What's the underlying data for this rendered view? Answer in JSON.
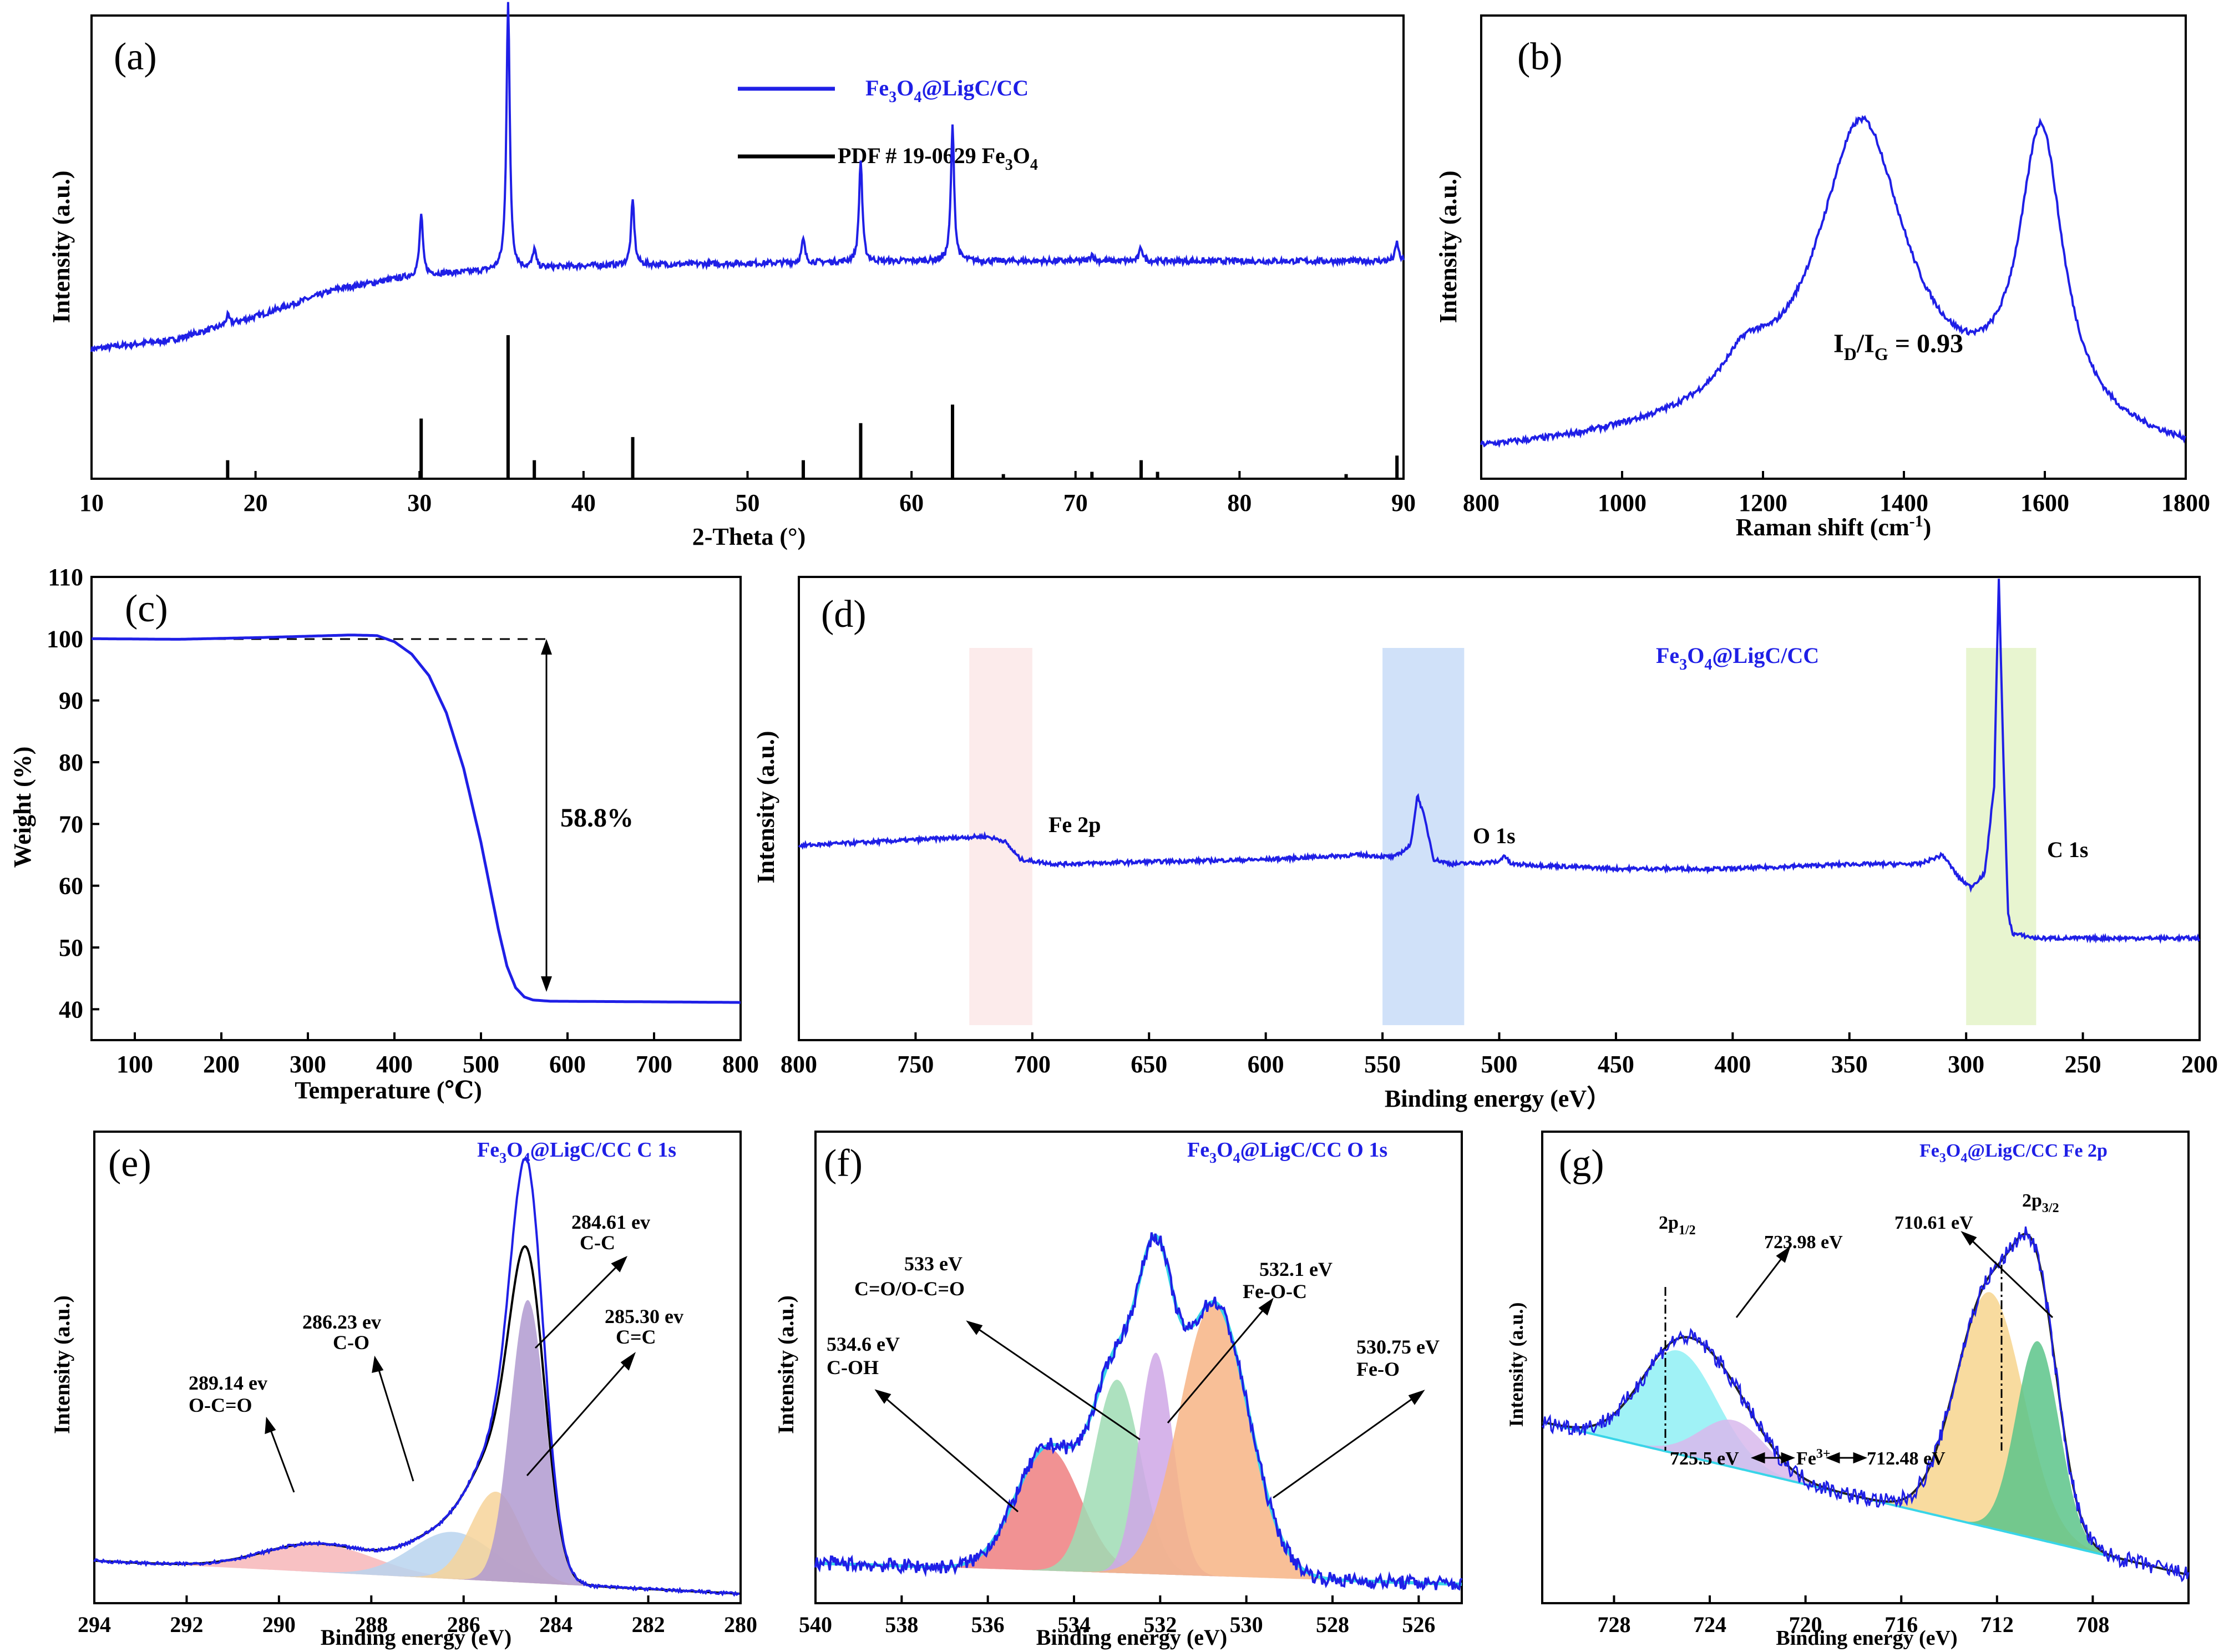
{
  "figure": {
    "description_panels": [
      "a",
      "b",
      "c",
      "d",
      "e",
      "f",
      "g"
    ]
  },
  "colors": {
    "blue": "#1f1fe6",
    "black": "#000000",
    "red": "#ef7f80",
    "green": "#8fd8a8",
    "purple": "#c9a3e0",
    "orange": "#f7b485",
    "cyan": "#8ff0f5",
    "yellow": "#f7de8e",
    "teal": "#40c08a",
    "pink": "#f7b6b8",
    "lightblue": "#b8d3ee",
    "shade_pink": "#fbe8e8",
    "shade_blue": "#c8dcf8",
    "shade_green": "#e4f3c8"
  },
  "chart_data": [
    {
      "id": "a",
      "type": "line",
      "panel_label": "(a)",
      "xlabel": "2-Theta (°)",
      "ylabel": "Intensity (a.u.)",
      "xlim": [
        10,
        90
      ],
      "ylim": [
        0,
        1
      ],
      "xticks": [
        "10",
        "20",
        "30",
        "40",
        "50",
        "60",
        "70",
        "80",
        "90"
      ],
      "legend": [
        {
          "name_main": "Fe",
          "name_sub": "3",
          "name_rest": "O",
          "name_sub2": "4",
          "name_tail": "@LigC/CC",
          "color": "#1f1fe6"
        },
        {
          "name_main": "PDF # 19-0629 Fe",
          "name_sub": "3",
          "name_rest": "O",
          "name_sub2": "4",
          "name_tail": "",
          "color": "#000000"
        }
      ],
      "series": [
        {
          "name": "Fe3O4@LigC/CC",
          "baseline": [
            [
              10,
              0.28
            ],
            [
              15,
              0.3
            ],
            [
              20,
              0.35
            ],
            [
              25,
              0.41
            ],
            [
              30,
              0.44
            ],
            [
              35,
              0.45
            ],
            [
              40,
              0.46
            ],
            [
              50,
              0.465
            ],
            [
              60,
              0.47
            ],
            [
              70,
              0.47
            ],
            [
              80,
              0.47
            ],
            [
              90,
              0.47
            ]
          ],
          "peaks": [
            [
              18.3,
              0.02
            ],
            [
              30.1,
              0.13
            ],
            [
              35.4,
              0.58
            ],
            [
              37.0,
              0.04
            ],
            [
              43.0,
              0.14
            ],
            [
              53.4,
              0.05
            ],
            [
              56.9,
              0.22
            ],
            [
              62.5,
              0.29
            ],
            [
              71.0,
              0.015
            ],
            [
              74.0,
              0.03
            ],
            [
              89.6,
              0.04
            ]
          ]
        },
        {
          "name": "PDF # 19-0629 Fe3O4",
          "sticks": [
            [
              18.3,
              0.04
            ],
            [
              30.1,
              0.13
            ],
            [
              35.4,
              0.31
            ],
            [
              37.0,
              0.04
            ],
            [
              43.0,
              0.09
            ],
            [
              53.4,
              0.04
            ],
            [
              56.9,
              0.12
            ],
            [
              62.5,
              0.16
            ],
            [
              65.6,
              0.01
            ],
            [
              71.0,
              0.015
            ],
            [
              74.0,
              0.04
            ],
            [
              75.0,
              0.015
            ],
            [
              86.5,
              0.01
            ],
            [
              89.6,
              0.05
            ]
          ]
        }
      ]
    },
    {
      "id": "b",
      "type": "line",
      "panel_label": "(b)",
      "xlabel_main": "Raman shift (cm",
      "xlabel_sup": "-1",
      "xlabel_tail": ")",
      "ylabel": "Intensity (a.u.)",
      "xlim": [
        800,
        1800
      ],
      "ylim": [
        0,
        1
      ],
      "xticks": [
        "800",
        "1000",
        "1200",
        "1400",
        "1600",
        "1800"
      ],
      "annotation": {
        "main": "I",
        "sub1": "D",
        "mid": "/I",
        "sub2": "G",
        "tail": " = 0.93"
      },
      "baseline": [
        [
          800,
          0.05
        ],
        [
          1800,
          0.03
        ]
      ],
      "peaks": [
        {
          "center": 1340,
          "height": 0.62,
          "width": 150
        },
        {
          "center": 1595,
          "height": 0.62,
          "width": 75
        },
        {
          "center": 1175,
          "height": 0.08,
          "width": 80
        }
      ]
    },
    {
      "id": "c",
      "type": "line",
      "panel_label": "(c)",
      "xlabel": "Temperature (℃)",
      "ylabel": "Weight (%)",
      "xlim": [
        50,
        800
      ],
      "ylim": [
        35,
        110
      ],
      "xticks": [
        "100",
        "200",
        "300",
        "400",
        "500",
        "600",
        "700",
        "800"
      ],
      "yticks": [
        "40",
        "50",
        "60",
        "70",
        "80",
        "90",
        "100",
        "110"
      ],
      "annotation": "58.8%",
      "points": [
        [
          50,
          100
        ],
        [
          150,
          99.9
        ],
        [
          250,
          100.2
        ],
        [
          350,
          100.6
        ],
        [
          380,
          100.5
        ],
        [
          400,
          99.5
        ],
        [
          420,
          97.5
        ],
        [
          440,
          94
        ],
        [
          460,
          88
        ],
        [
          480,
          79
        ],
        [
          500,
          67
        ],
        [
          510,
          60
        ],
        [
          520,
          53
        ],
        [
          530,
          47
        ],
        [
          540,
          43.5
        ],
        [
          550,
          42
        ],
        [
          560,
          41.5
        ],
        [
          580,
          41.3
        ],
        [
          700,
          41.2
        ],
        [
          800,
          41.1
        ]
      ]
    },
    {
      "id": "d",
      "type": "line",
      "panel_label": "(d)",
      "xlabel": "Binding energy (eV）",
      "ylabel": "Intensity (a.u.)",
      "xlim": [
        800,
        200
      ],
      "ylim": [
        0,
        1
      ],
      "xticks": [
        "800",
        "750",
        "700",
        "650",
        "600",
        "550",
        "500",
        "450",
        "400",
        "350",
        "300",
        "250",
        "200"
      ],
      "title": {
        "main": "Fe",
        "sub": "3",
        "mid": "O",
        "sub2": "4",
        "tail": "@LigC/CC"
      },
      "regions": [
        {
          "from": 727,
          "to": 700,
          "label": "Fe 2p"
        },
        {
          "from": 550,
          "to": 515,
          "label": "O 1s"
        },
        {
          "from": 300,
          "to": 270,
          "label": "C 1s"
        }
      ],
      "points": [
        [
          800,
          0.42
        ],
        [
          760,
          0.43
        ],
        [
          720,
          0.44
        ],
        [
          712,
          0.43
        ],
        [
          705,
          0.39
        ],
        [
          690,
          0.38
        ],
        [
          650,
          0.385
        ],
        [
          600,
          0.39
        ],
        [
          560,
          0.4
        ],
        [
          545,
          0.395
        ],
        [
          538,
          0.42
        ],
        [
          535,
          0.53
        ],
        [
          532,
          0.48
        ],
        [
          528,
          0.39
        ],
        [
          520,
          0.38
        ],
        [
          500,
          0.385
        ],
        [
          498,
          0.4
        ],
        [
          495,
          0.38
        ],
        [
          450,
          0.37
        ],
        [
          400,
          0.37
        ],
        [
          350,
          0.38
        ],
        [
          320,
          0.38
        ],
        [
          310,
          0.4
        ],
        [
          303,
          0.35
        ],
        [
          298,
          0.33
        ],
        [
          292,
          0.36
        ],
        [
          288,
          0.55
        ],
        [
          286,
          1.0
        ],
        [
          284,
          0.6
        ],
        [
          282,
          0.27
        ],
        [
          280,
          0.23
        ],
        [
          270,
          0.22
        ],
        [
          250,
          0.22
        ],
        [
          200,
          0.22
        ]
      ]
    },
    {
      "id": "e",
      "type": "area",
      "panel_label": "(e)",
      "xlabel": "Binding energy (eV)",
      "ylabel": "Intensity (a.u.)",
      "xlim": [
        294,
        280
      ],
      "ylim": [
        0,
        1
      ],
      "xticks": [
        "294",
        "292",
        "290",
        "288",
        "286",
        "284",
        "282",
        "280"
      ],
      "title": {
        "main": "Fe",
        "sub": "3",
        "mid": "O",
        "sub2": "4",
        "tail": "@LigC/CC  C 1s"
      },
      "components": [
        {
          "center": 289.14,
          "height": 0.06,
          "width": 1.2,
          "color": "#f7b6b8",
          "label1": "289.14 ev",
          "label2": "O-C=O"
        },
        {
          "center": 286.23,
          "height": 0.1,
          "width": 0.9,
          "color": "#b8d3ee",
          "label1": "286.23 ev",
          "label2": "C-O"
        },
        {
          "center": 285.3,
          "height": 0.19,
          "width": 0.55,
          "color": "#f7d49a",
          "label1": "285.30 ev",
          "label2": "C=C"
        },
        {
          "center": 284.61,
          "height": 0.6,
          "width": 0.38,
          "color": "#b09ad0",
          "label1": "284.61 ev",
          "label2": "C-C"
        }
      ]
    },
    {
      "id": "f",
      "type": "area",
      "panel_label": "(f)",
      "xlabel": "Binding energy (eV)",
      "ylabel": "Intensity (a.u.)",
      "xlim": [
        540,
        525
      ],
      "ylim": [
        0,
        1
      ],
      "xticks": [
        "540",
        "538",
        "536",
        "534",
        "532",
        "530",
        "528",
        "526"
      ],
      "title": {
        "main": "Fe",
        "sub": "3",
        "mid": "O",
        "sub2": "4",
        "tail": "@LigC/CC  O 1s"
      },
      "components": [
        {
          "center": 534.6,
          "height": 0.26,
          "width": 0.75,
          "color": "#ef7f80",
          "label1": "534.6 eV",
          "label2": "C-OH"
        },
        {
          "center": 533.0,
          "height": 0.41,
          "width": 0.55,
          "color": "#9fdcb4",
          "label1": "533 eV",
          "label2": "C=O/O-C=O"
        },
        {
          "center": 532.1,
          "height": 0.47,
          "width": 0.4,
          "color": "#cfa7e6",
          "label1": "532.1 eV",
          "label2": "Fe-O-C"
        },
        {
          "center": 530.75,
          "height": 0.58,
          "width": 0.8,
          "color": "#f7b485",
          "label1": "530.75 eV",
          "label2": "Fe-O"
        }
      ]
    },
    {
      "id": "g",
      "type": "area",
      "panel_label": "(g)",
      "xlabel": "Binding energy (eV)",
      "ylabel": "Intensity (a.u.)",
      "xlim": [
        731,
        704
      ],
      "ylim": [
        0,
        1
      ],
      "xticks": [
        "728",
        "724",
        "720",
        "716",
        "712",
        "708"
      ],
      "title": {
        "main": "Fe",
        "sub": "3",
        "mid": "O",
        "sub2": "4",
        "tail": "@LigC/CC  Fe 2p"
      },
      "orbital_labels": [
        {
          "main": "2p",
          "sub": "1/2"
        },
        {
          "main": "2p",
          "sub": "3/2"
        }
      ],
      "peak_labels": [
        "723.98 eV",
        "710.61 eV"
      ],
      "fe3_label": {
        "left": "725.5 eV",
        "mid_main": "Fe",
        "mid_sup": "3+",
        "right": "712.48 eV"
      },
      "components": [
        {
          "center": 725.3,
          "height": 0.22,
          "width": 1.6,
          "color": "#8ff0f5"
        },
        {
          "center": 723.0,
          "height": 0.1,
          "width": 1.4,
          "color": "#d8b8ec"
        },
        {
          "center": 712.3,
          "height": 0.5,
          "width": 1.4,
          "color": "#f7d58e"
        },
        {
          "center": 710.3,
          "height": 0.42,
          "width": 0.9,
          "color": "#5cc48a"
        }
      ]
    }
  ]
}
